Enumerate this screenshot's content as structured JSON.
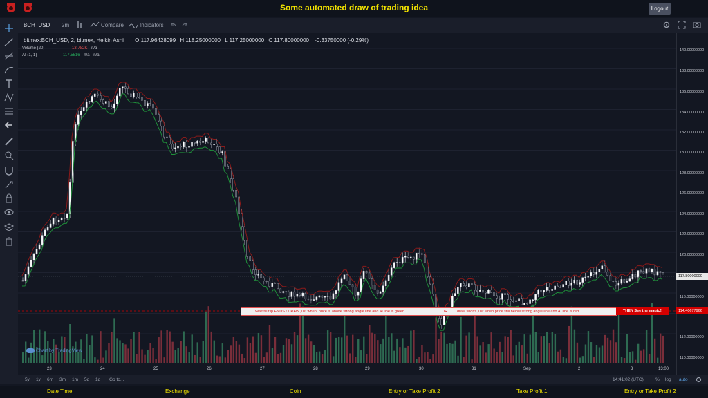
{
  "header": {
    "title": "Some automated draw of trading idea",
    "logout_label": "Logout"
  },
  "toolbar": {
    "symbol": "BCH_USD",
    "interval": "2m",
    "compare_label": "Compare",
    "indicators_label": "Indicators"
  },
  "legend": {
    "title": "bitmex:BCH_USD, 2, bitmex, Heikin Ashi",
    "open": "O 117.96428099",
    "high": "H 118.25000000",
    "low": "L 117.25000000",
    "close": "C 117.80000000",
    "change": "-0.33750000 (-0.29%)"
  },
  "indicators": [
    {
      "name": "Volume (20)",
      "value": "13.782K",
      "extra": "n/a"
    },
    {
      "name": "AI (1, 1)",
      "value": "117.5516",
      "extra": "n/a",
      "extra2": "n/a"
    }
  ],
  "price_axis": [
    "140.00000000",
    "138.00000000",
    "136.00000000",
    "134.00000000",
    "132.00000000",
    "130.00000000",
    "128.00000000",
    "126.00000000",
    "124.00000000",
    "122.00000000",
    "120.00000000",
    "118.00000000",
    "117.80000000",
    "116.00000000",
    "114.40677966",
    "112.00000000",
    "110.00000000"
  ],
  "time_axis": [
    "23",
    "24",
    "25",
    "26",
    "27",
    "28",
    "29",
    "30",
    "31",
    "Sep",
    "2",
    "3",
    "13:00"
  ],
  "banner": {
    "part1": "Wait till flip ENDS  !   DRAW just when:  price is above strong angle line and AI line is green",
    "or": "OR",
    "part2": "draw shorts just when price still below strong angle line and AI line is red",
    "magic": "THEN See the magic!!"
  },
  "current_price": "117.80000000",
  "line_price": "114.40677966",
  "watermark": "Chart by TradingView",
  "ranges": [
    "5y",
    "1y",
    "6m",
    "3m",
    "1m",
    "5d",
    "1d",
    "Go to..."
  ],
  "status": {
    "time": "14:41:02 (UTC)",
    "pct": "%",
    "log": "log",
    "auto": "auto"
  },
  "footer": [
    "Date Time",
    "Exchange",
    "Coin",
    "Entry or Take Profit 2",
    "Take Profit 1",
    "Entry or Take Profit 2"
  ],
  "colors": {
    "bg": "#131722",
    "title": "#f2e300",
    "green": "#26a65b",
    "red": "#c0392b",
    "banner_red": "#d40000"
  }
}
